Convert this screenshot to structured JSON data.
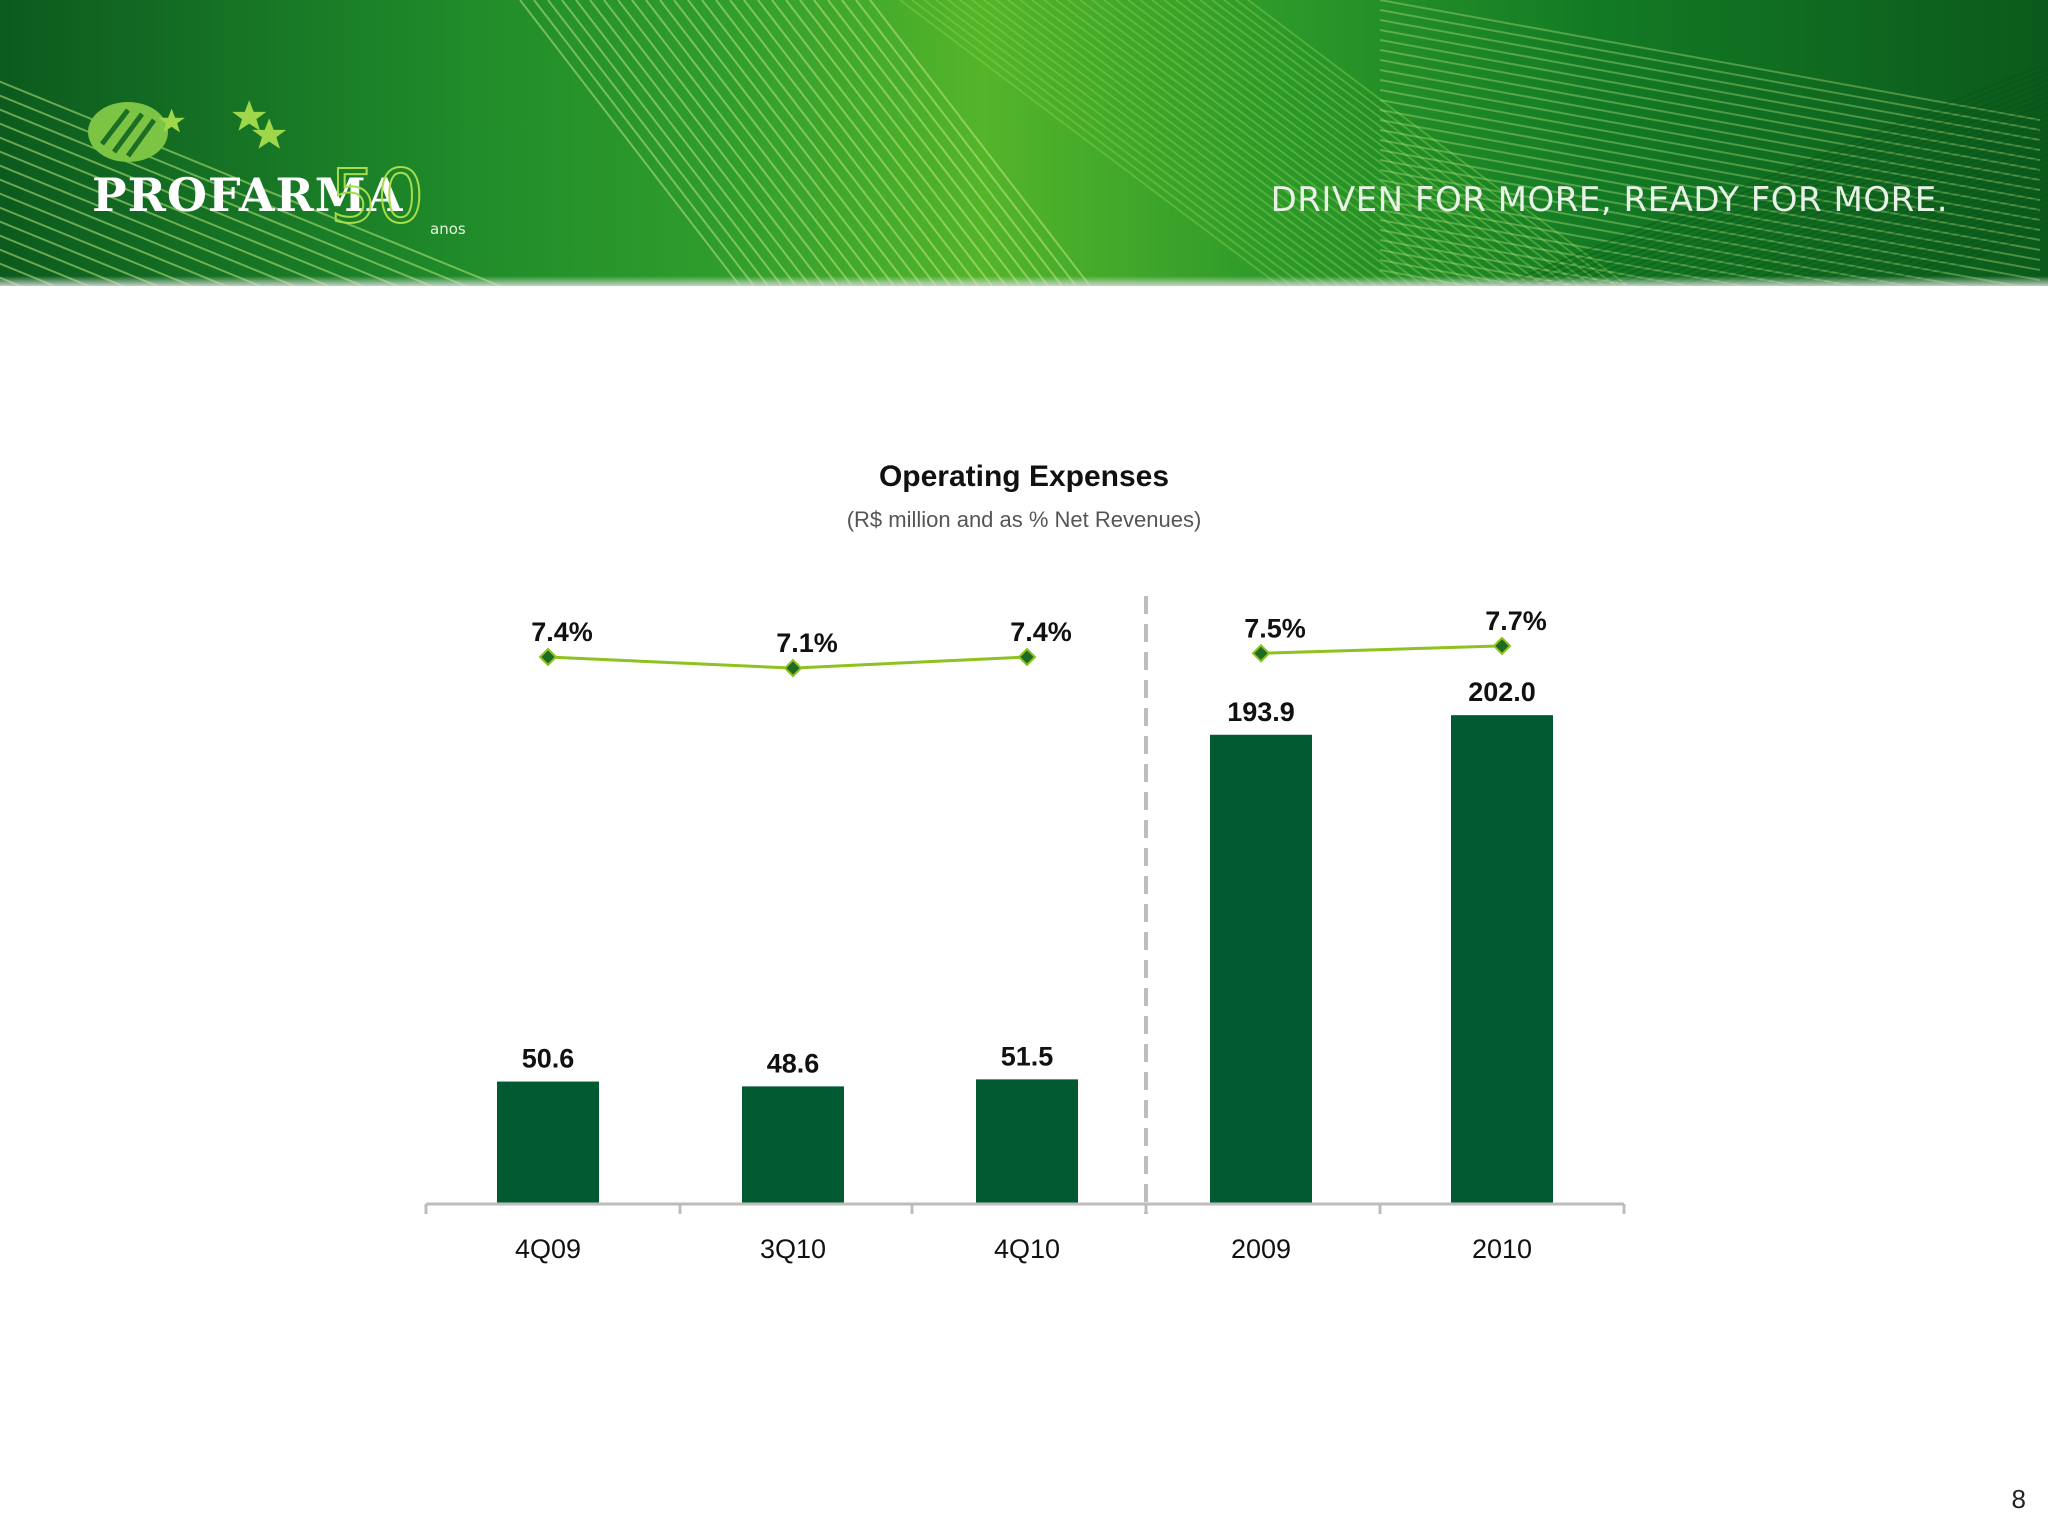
{
  "header": {
    "brand": "PROFARMA",
    "anniversary_number": "50",
    "anniversary_word": "anos",
    "tagline": "DRIVEN FOR MORE, READY FOR MORE."
  },
  "colors": {
    "bar": "#025a33",
    "line": "#8dc21f",
    "marker": "#1e6b21",
    "divider": "#bdbdbd"
  },
  "page_number": "8",
  "chart_data": {
    "type": "bar",
    "title": "Operating Expenses",
    "subtitle": "(R$ million and as % Net Revenues)",
    "categories": [
      "4Q09",
      "3Q10",
      "4Q10",
      "2009",
      "2010"
    ],
    "series": [
      {
        "type": "bar",
        "values": [
          50.6,
          48.6,
          51.5,
          193.9,
          202.0
        ],
        "labels": [
          "50.6",
          "48.6",
          "51.5",
          "193.9",
          "202.0"
        ]
      },
      {
        "type": "line",
        "values": [
          7.4,
          7.1,
          7.4,
          7.5,
          7.7
        ],
        "labels": [
          "7.4%",
          "7.1%",
          "7.4%",
          "7.5%",
          "7.7%"
        ],
        "segments": [
          [
            0,
            1,
            2
          ],
          [
            3,
            4
          ]
        ]
      }
    ],
    "separator_after_category": "4Q10",
    "legend": "none",
    "grid": false
  }
}
